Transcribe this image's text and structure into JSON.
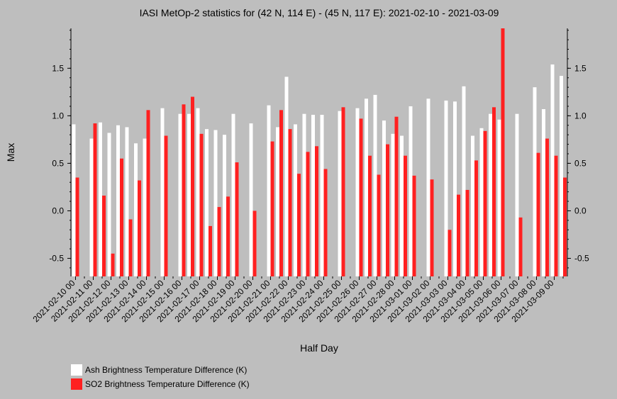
{
  "chart_data": {
    "type": "bar",
    "title": "IASI MetOp-2 statistics for (42 N, 114 E) - (45 N, 117 E): 2021-02-10 - 2021-03-09",
    "xlabel": "Half Day",
    "ylabel": "Max",
    "ylim": [
      -0.69,
      1.92
    ],
    "yticks": [
      -0.5,
      0.0,
      0.5,
      1.0,
      1.5
    ],
    "ytick_labels": [
      "-0.5",
      "0.0",
      "0.5",
      "1.0",
      "1.5"
    ],
    "xtick_labels": [
      "2021-02-10 00",
      "2021-02-11 00",
      "2021-02-12 00",
      "2021-02-13 00",
      "2021-02-14 00",
      "2021-02-15 00",
      "2021-02-16 00",
      "2021-02-17 00",
      "2021-02-18 00",
      "2021-02-19 00",
      "2021-02-20 00",
      "2021-02-21 00",
      "2021-02-22 00",
      "2021-02-23 00",
      "2021-02-24 00",
      "2021-02-25 00",
      "2021-02-26 00",
      "2021-02-27 00",
      "2021-02-28 00",
      "2021-03-01 00",
      "2021-03-02 00",
      "2021-03-03 00",
      "2021-03-04 00",
      "2021-03-05 00",
      "2021-03-06 00",
      "2021-03-07 00",
      "2021-03-08 00",
      "2021-03-09 00"
    ],
    "legend_position": "bottom-left",
    "series": [
      {
        "name": "Ash Brightness Temperature Difference (K)",
        "color": "#ffffff",
        "values": [
          0.91,
          null,
          0.76,
          0.93,
          0.82,
          0.9,
          0.88,
          0.71,
          0.76,
          null,
          1.08,
          null,
          1.02,
          1.02,
          1.08,
          0.86,
          0.85,
          0.8,
          1.02,
          null,
          0.92,
          null,
          1.11,
          0.88,
          1.41,
          0.91,
          1.02,
          1.01,
          1.01,
          null,
          1.05,
          null,
          1.08,
          1.18,
          1.22,
          0.95,
          0.81,
          0.79,
          1.1,
          null,
          1.18,
          null,
          1.16,
          1.15,
          1.31,
          0.79,
          0.87,
          1.02,
          0.96,
          null,
          1.02,
          null,
          1.3,
          1.07,
          1.54,
          1.42
        ]
      },
      {
        "name": "SO2 Brightness Temperature Difference (K)",
        "color": "#ff2020",
        "values": [
          0.35,
          null,
          0.92,
          0.16,
          -0.45,
          0.55,
          -0.09,
          0.32,
          1.06,
          null,
          0.79,
          null,
          1.12,
          1.2,
          0.81,
          -0.16,
          0.04,
          0.15,
          0.51,
          null,
          0.0,
          null,
          0.73,
          1.06,
          0.86,
          0.39,
          0.62,
          0.68,
          0.44,
          null,
          1.09,
          null,
          0.97,
          0.58,
          0.38,
          0.7,
          0.99,
          0.58,
          0.37,
          null,
          0.33,
          null,
          -0.2,
          0.17,
          0.22,
          0.53,
          0.84,
          1.09,
          1.92,
          null,
          -0.07,
          null,
          0.61,
          0.76,
          0.58,
          0.35
        ]
      }
    ]
  }
}
